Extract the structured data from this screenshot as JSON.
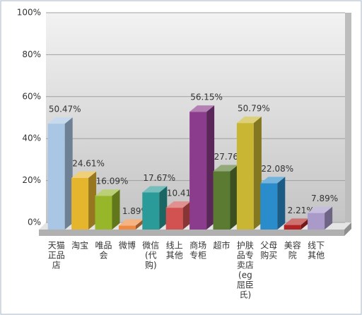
{
  "chart_data": {
    "type": "bar3d",
    "categories": [
      [
        "天猫",
        "正品",
        "店"
      ],
      [
        "淘宝"
      ],
      [
        "唯品",
        "会"
      ],
      [
        "微博"
      ],
      [
        "微信",
        "(代",
        "购)"
      ],
      [
        "线上",
        "其他"
      ],
      [
        "商场",
        "专柜"
      ],
      [
        "超市"
      ],
      [
        "护肤",
        "品专",
        "卖店",
        "(eg",
        "屈臣",
        "氏)"
      ],
      [
        "父母",
        "购买"
      ],
      [
        "美容",
        "院"
      ],
      [
        "线下",
        "其他"
      ]
    ],
    "values": [
      50.47,
      24.61,
      16.09,
      1.89,
      17.67,
      10.41,
      56.15,
      27.76,
      50.79,
      22.08,
      2.21,
      7.89
    ],
    "value_labels": [
      "50.47%",
      "24.61%",
      "16.09%",
      "1.89%",
      "17.67%",
      "10.41%",
      "56.15%",
      "27.76%",
      "50.79%",
      "22.08%",
      "2.21%",
      "7.89%"
    ],
    "colors": [
      "#a9c6e4",
      "#e6b52e",
      "#97b62a",
      "#f08a42",
      "#2a9b98",
      "#d25252",
      "#8c3c8c",
      "#5b7a32",
      "#c9b733",
      "#2a8ccb",
      "#b22424",
      "#a99ac9"
    ],
    "ylim": [
      0,
      100
    ],
    "yticks": [
      {
        "value": 0,
        "label": "0%"
      },
      {
        "value": 20,
        "label": "20%"
      },
      {
        "value": 40,
        "label": "40%"
      },
      {
        "value": 60,
        "label": "60%"
      },
      {
        "value": 80,
        "label": "80%"
      },
      {
        "value": 100,
        "label": "100%"
      }
    ],
    "grid": true
  }
}
